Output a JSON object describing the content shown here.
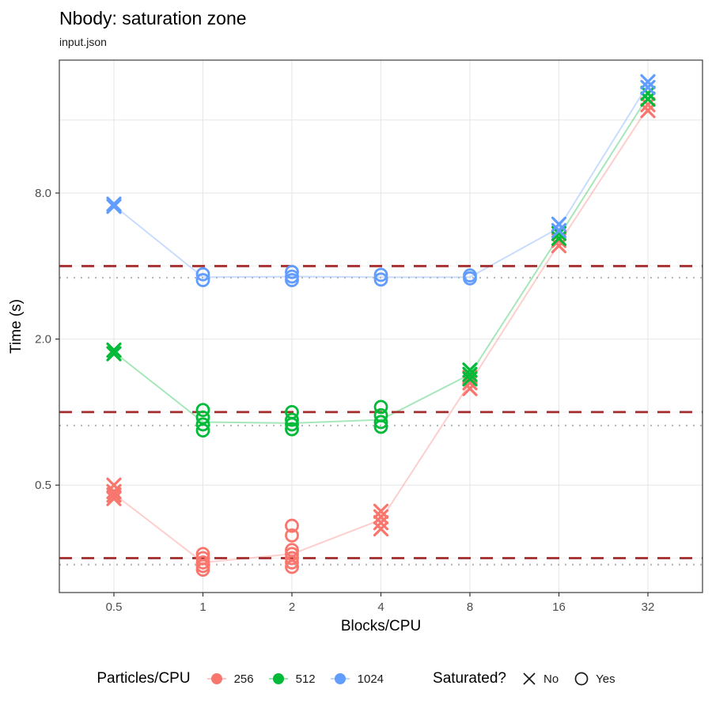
{
  "title": "Nbody: saturation zone",
  "subtitle": "input.json",
  "legend": {
    "color": {
      "title": "Particles/CPU",
      "items": [
        {
          "label": "256",
          "color": "#F8766D"
        },
        {
          "label": "512",
          "color": "#00BA38"
        },
        {
          "label": "1024",
          "color": "#619CFF"
        }
      ]
    },
    "shape": {
      "title": "Saturated?",
      "items": [
        {
          "label": "No",
          "shape": "x"
        },
        {
          "label": "Yes",
          "shape": "circle"
        }
      ]
    }
  },
  "chart_data": {
    "type": "scatter",
    "title": "Nbody: saturation zone",
    "subtitle": "input.json",
    "xlabel": "Blocks/CPU",
    "ylabel": "Time (s)",
    "x_scale": "log2",
    "y_scale": "log2",
    "x_ticks": [
      "0.5",
      "1",
      "2",
      "4",
      "8",
      "16",
      "32"
    ],
    "x_tick_values": [
      0.5,
      1,
      2,
      4,
      8,
      16,
      32
    ],
    "y_ticks": [
      "0.5",
      "2.0",
      "8.0"
    ],
    "y_tick_values": [
      0.5,
      2.0,
      8.0
    ],
    "x_range": [
      0.327,
      48.9
    ],
    "y_range": [
      0.18,
      28.3
    ],
    "grid": {
      "major_color": "#e6e6e6",
      "minor_color": "#f2f2f2",
      "y_major": [
        0.5,
        2,
        8,
        16
      ],
      "y_minor": [
        0.25,
        1,
        4
      ]
    },
    "reference_lines": {
      "dashed": {
        "color": "#A32B2B",
        "values": [
          4.0,
          1.0,
          0.25
        ]
      },
      "dotted": {
        "color": "#b8b8b8",
        "values": [
          3.58,
          0.88,
          0.235
        ]
      }
    },
    "series": [
      {
        "name": "256",
        "color": "#F8766D",
        "line": {
          "x": [
            0.5,
            1,
            2,
            4,
            8,
            16,
            32
          ],
          "y": [
            0.46,
            0.24,
            0.26,
            0.36,
            1.32,
            4.95,
            18.0
          ]
        },
        "points": [
          {
            "x": 0.5,
            "y": 0.5,
            "sat": "No"
          },
          {
            "x": 0.5,
            "y": 0.47,
            "sat": "No"
          },
          {
            "x": 0.5,
            "y": 0.455,
            "sat": "No"
          },
          {
            "x": 0.5,
            "y": 0.44,
            "sat": "No"
          },
          {
            "x": 1,
            "y": 0.26,
            "sat": "Yes"
          },
          {
            "x": 1,
            "y": 0.25,
            "sat": "Yes"
          },
          {
            "x": 1,
            "y": 0.24,
            "sat": "Yes"
          },
          {
            "x": 1,
            "y": 0.232,
            "sat": "Yes"
          },
          {
            "x": 1,
            "y": 0.224,
            "sat": "Yes"
          },
          {
            "x": 2,
            "y": 0.34,
            "sat": "Yes"
          },
          {
            "x": 2,
            "y": 0.31,
            "sat": "Yes"
          },
          {
            "x": 2,
            "y": 0.27,
            "sat": "Yes"
          },
          {
            "x": 2,
            "y": 0.26,
            "sat": "Yes"
          },
          {
            "x": 2,
            "y": 0.25,
            "sat": "Yes"
          },
          {
            "x": 2,
            "y": 0.24,
            "sat": "Yes"
          },
          {
            "x": 2,
            "y": 0.23,
            "sat": "Yes"
          },
          {
            "x": 4,
            "y": 0.39,
            "sat": "No"
          },
          {
            "x": 4,
            "y": 0.37,
            "sat": "No"
          },
          {
            "x": 4,
            "y": 0.35,
            "sat": "No"
          },
          {
            "x": 4,
            "y": 0.33,
            "sat": "No"
          },
          {
            "x": 8,
            "y": 1.39,
            "sat": "No"
          },
          {
            "x": 8,
            "y": 1.32,
            "sat": "No"
          },
          {
            "x": 8,
            "y": 1.25,
            "sat": "No"
          },
          {
            "x": 16,
            "y": 5.1,
            "sat": "No"
          },
          {
            "x": 16,
            "y": 4.85,
            "sat": "No"
          },
          {
            "x": 32,
            "y": 18.5,
            "sat": "No"
          },
          {
            "x": 32,
            "y": 17.5,
            "sat": "No"
          }
        ]
      },
      {
        "name": "512",
        "color": "#00BA38",
        "line": {
          "x": [
            0.5,
            1,
            2,
            4,
            8,
            16,
            32
          ],
          "y": [
            1.77,
            0.91,
            0.9,
            0.93,
            1.43,
            5.3,
            20.0
          ]
        },
        "points": [
          {
            "x": 0.5,
            "y": 1.8,
            "sat": "No"
          },
          {
            "x": 0.5,
            "y": 1.74,
            "sat": "No"
          },
          {
            "x": 1,
            "y": 1.02,
            "sat": "Yes"
          },
          {
            "x": 1,
            "y": 0.95,
            "sat": "Yes"
          },
          {
            "x": 1,
            "y": 0.89,
            "sat": "Yes"
          },
          {
            "x": 1,
            "y": 0.84,
            "sat": "Yes"
          },
          {
            "x": 2,
            "y": 1.0,
            "sat": "Yes"
          },
          {
            "x": 2,
            "y": 0.93,
            "sat": "Yes"
          },
          {
            "x": 2,
            "y": 0.89,
            "sat": "Yes"
          },
          {
            "x": 2,
            "y": 0.85,
            "sat": "Yes"
          },
          {
            "x": 4,
            "y": 1.05,
            "sat": "Yes"
          },
          {
            "x": 4,
            "y": 0.97,
            "sat": "Yes"
          },
          {
            "x": 4,
            "y": 0.91,
            "sat": "Yes"
          },
          {
            "x": 4,
            "y": 0.87,
            "sat": "Yes"
          },
          {
            "x": 8,
            "y": 1.49,
            "sat": "No"
          },
          {
            "x": 8,
            "y": 1.43,
            "sat": "No"
          },
          {
            "x": 8,
            "y": 1.37,
            "sat": "No"
          },
          {
            "x": 16,
            "y": 5.45,
            "sat": "No"
          },
          {
            "x": 16,
            "y": 5.2,
            "sat": "No"
          },
          {
            "x": 32,
            "y": 20.6,
            "sat": "No"
          },
          {
            "x": 32,
            "y": 19.5,
            "sat": "No"
          }
        ]
      },
      {
        "name": "1024",
        "color": "#619CFF",
        "line": {
          "x": [
            0.5,
            1,
            2,
            4,
            8,
            16,
            32
          ],
          "y": [
            7.1,
            3.6,
            3.62,
            3.6,
            3.6,
            5.75,
            22.4
          ]
        },
        "points": [
          {
            "x": 0.5,
            "y": 7.2,
            "sat": "No"
          },
          {
            "x": 0.5,
            "y": 7.05,
            "sat": "No"
          },
          {
            "x": 1,
            "y": 3.7,
            "sat": "Yes"
          },
          {
            "x": 1,
            "y": 3.5,
            "sat": "Yes"
          },
          {
            "x": 2,
            "y": 3.78,
            "sat": "Yes"
          },
          {
            "x": 2,
            "y": 3.62,
            "sat": "Yes"
          },
          {
            "x": 2,
            "y": 3.5,
            "sat": "Yes"
          },
          {
            "x": 4,
            "y": 3.68,
            "sat": "Yes"
          },
          {
            "x": 4,
            "y": 3.52,
            "sat": "Yes"
          },
          {
            "x": 8,
            "y": 3.66,
            "sat": "Yes"
          },
          {
            "x": 8,
            "y": 3.56,
            "sat": "Yes"
          },
          {
            "x": 16,
            "y": 5.95,
            "sat": "No"
          },
          {
            "x": 16,
            "y": 5.6,
            "sat": "No"
          },
          {
            "x": 32,
            "y": 23.0,
            "sat": "No"
          },
          {
            "x": 32,
            "y": 21.8,
            "sat": "No"
          }
        ]
      }
    ]
  }
}
